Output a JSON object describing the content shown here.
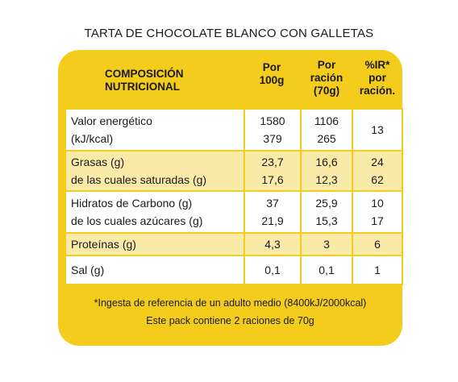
{
  "title": "TARTA DE CHOCOLATE BLANCO CON GALLETAS",
  "header": {
    "composition": [
      "COMPOSICIÓN",
      "NUTRICIONAL"
    ],
    "per100": [
      "Por",
      "100g"
    ],
    "perServing": [
      "Por",
      "ración",
      "(70g)"
    ],
    "ir": [
      "%IR*",
      "por",
      "ración."
    ]
  },
  "rows": [
    {
      "label": [
        "Valor energético",
        "(kJ/kcal)"
      ],
      "per100": [
        "1580",
        "379"
      ],
      "perServing": [
        "1106",
        "265"
      ],
      "ir": [
        "13"
      ]
    },
    {
      "label": [
        "Grasas (g)",
        "de las cuales saturadas (g)"
      ],
      "per100": [
        "23,7",
        "17,6"
      ],
      "perServing": [
        "16,6",
        "12,3"
      ],
      "ir": [
        "24",
        "62"
      ]
    },
    {
      "label": [
        "Hidratos de Carbono (g)",
        "de los cuales azúcares (g)"
      ],
      "per100": [
        "37",
        "21,9"
      ],
      "perServing": [
        "25,9",
        "15,3"
      ],
      "ir": [
        "10",
        "17"
      ]
    },
    {
      "label": [
        "Proteínas (g)"
      ],
      "per100": [
        "4,3"
      ],
      "perServing": [
        "3"
      ],
      "ir": [
        "6"
      ]
    },
    {
      "label": [
        "Sal (g)"
      ],
      "per100": [
        "0,1"
      ],
      "perServing": [
        "0,1"
      ],
      "ir": [
        "1"
      ]
    }
  ],
  "footnote": [
    "*Ingesta de referencia de un adulto medio (8400kJ/2000kcal)",
    "Este pack contiene 2 raciones de 70g"
  ],
  "colors": {
    "panel": "#f4cc1c",
    "rowAlt": "#faeaa8",
    "rowWhite": "#ffffff"
  }
}
